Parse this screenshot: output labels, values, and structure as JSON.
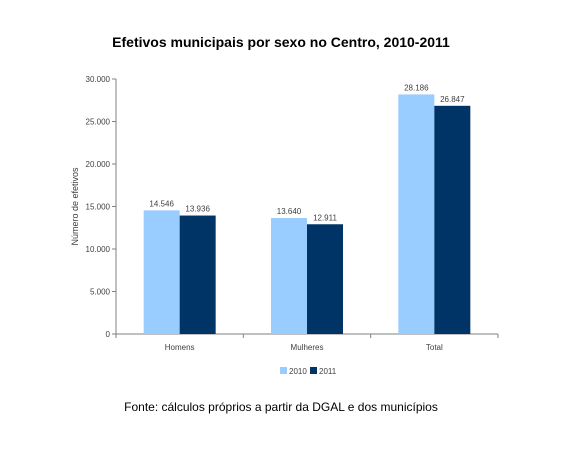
{
  "chart_data": {
    "type": "bar",
    "title": "Efetivos municipais por sexo no Centro, 2010-2011",
    "xlabel": "",
    "ylabel": "Número de efetivos",
    "categories": [
      "Homens",
      "Mulheres",
      "Total"
    ],
    "series": [
      {
        "name": "2010",
        "color": "#99ccff",
        "values": [
          14546,
          13640,
          28186
        ],
        "labels": [
          "14.546",
          "13.640",
          "28.186"
        ]
      },
      {
        "name": "2011",
        "color": "#003366",
        "values": [
          13936,
          12911,
          26847
        ],
        "labels": [
          "13.936",
          "12.911",
          "26.847"
        ]
      }
    ],
    "ylim": [
      0,
      30000
    ],
    "yticks": [
      0,
      5000,
      10000,
      15000,
      20000,
      25000,
      30000
    ],
    "ytick_labels": [
      "0",
      "5.000",
      "10.000",
      "15.000",
      "20.000",
      "25.000",
      "30.000"
    ],
    "grid": false,
    "legend_position": "bottom"
  },
  "note": "Fonte: cálculos próprios a partir da DGAL e dos municípios"
}
